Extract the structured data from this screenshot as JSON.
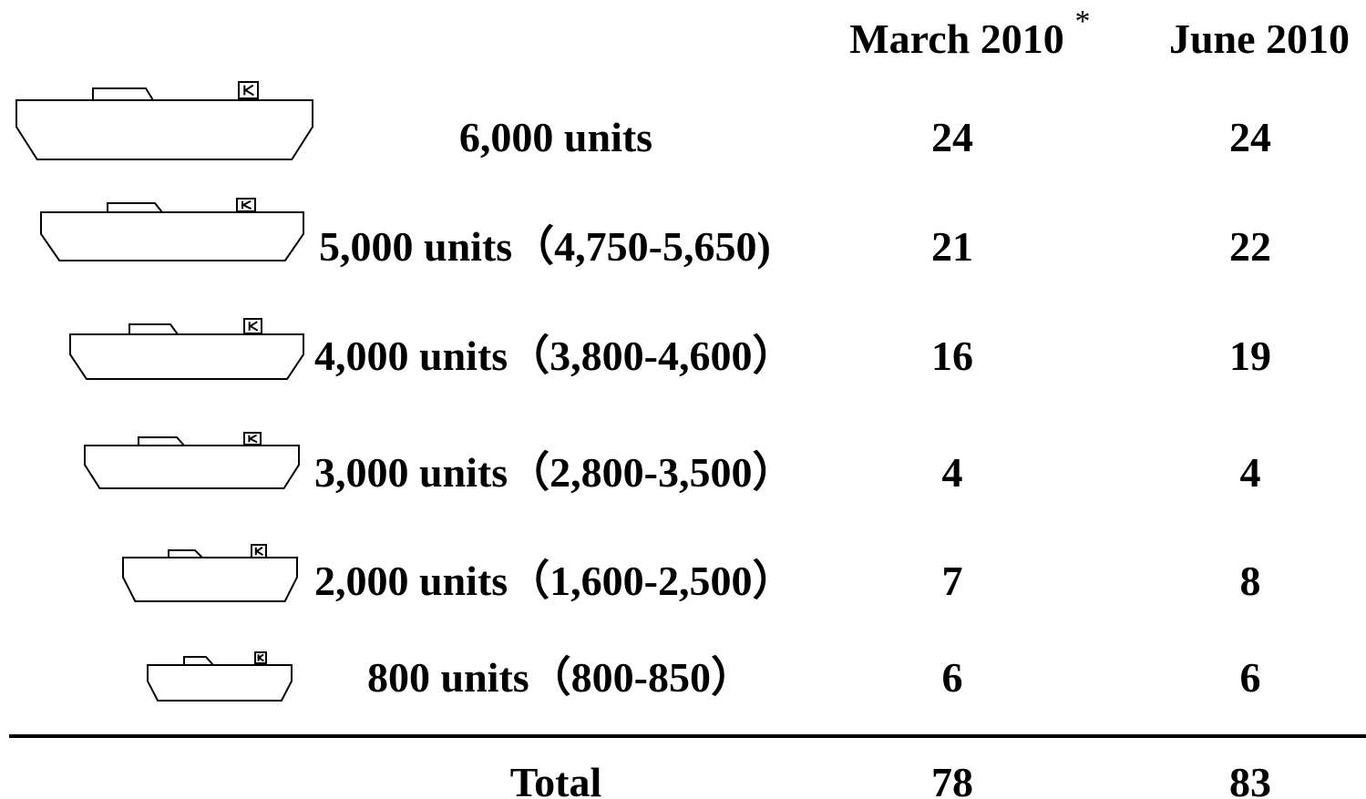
{
  "header": {
    "columns": [
      "March 2010",
      "June 2010"
    ],
    "footnote_mark": "*"
  },
  "table": {
    "rows": [
      [
        "6,000 units",
        24,
        24
      ],
      [
        "5,000 units（4,750-5,650)",
        21,
        22
      ],
      [
        "4,000 units（3,800-4,600）",
        16,
        19
      ],
      [
        "3,000 units（2,800-3,500）",
        4,
        4
      ],
      [
        "2,000 units（1,600-2,500）",
        7,
        8
      ],
      [
        "800 units（800-850）",
        6,
        6
      ]
    ],
    "total": [
      "Total",
      78,
      83
    ]
  }
}
